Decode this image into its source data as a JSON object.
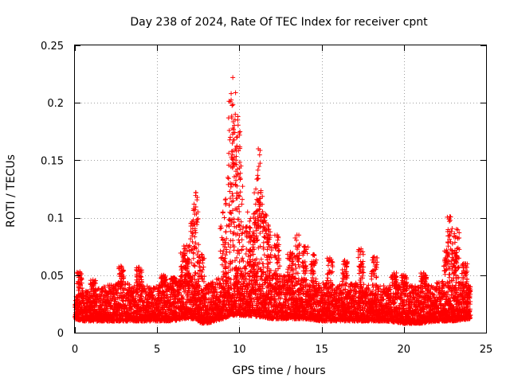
{
  "chart_data": {
    "type": "scatter",
    "title": "Day 238 of 2024, Rate Of TEC Index for receiver cpnt",
    "xlabel": "GPS time / hours",
    "ylabel": "ROTI / TECUs",
    "xlim": [
      0,
      25
    ],
    "ylim": [
      0,
      0.25
    ],
    "xticks": [
      0,
      5,
      10,
      15,
      20,
      25
    ],
    "xtick_labels": [
      "0",
      "5",
      "10",
      "15",
      "20",
      "25"
    ],
    "yticks": [
      0,
      0.05,
      0.1,
      0.15,
      0.2,
      0.25
    ],
    "ytick_labels": [
      "0",
      "0.05",
      "0.1",
      "0.15",
      "0.2",
      "0.25"
    ],
    "grid": true,
    "marker": "+",
    "marker_color": "#ff0000",
    "series": [
      {
        "name": "ROTI",
        "envelope_note": "dense band of points sampled every ~0.01 h; values estimated from the figure",
        "baseline_profile": [
          [
            0.0,
            0.012,
            0.03
          ],
          [
            0.5,
            0.01,
            0.035
          ],
          [
            1.0,
            0.01,
            0.035
          ],
          [
            2.0,
            0.01,
            0.04
          ],
          [
            3.0,
            0.01,
            0.042
          ],
          [
            4.0,
            0.01,
            0.04
          ],
          [
            5.0,
            0.01,
            0.04
          ],
          [
            6.0,
            0.01,
            0.042
          ],
          [
            6.5,
            0.012,
            0.045
          ],
          [
            7.0,
            0.012,
            0.05
          ],
          [
            7.4,
            0.012,
            0.045
          ],
          [
            7.6,
            0.008,
            0.035
          ],
          [
            8.0,
            0.008,
            0.04
          ],
          [
            9.0,
            0.012,
            0.048
          ],
          [
            9.5,
            0.015,
            0.055
          ],
          [
            10.0,
            0.015,
            0.055
          ],
          [
            11.0,
            0.014,
            0.055
          ],
          [
            12.0,
            0.012,
            0.05
          ],
          [
            13.0,
            0.012,
            0.048
          ],
          [
            14.0,
            0.012,
            0.045
          ],
          [
            15.0,
            0.01,
            0.042
          ],
          [
            16.0,
            0.01,
            0.04
          ],
          [
            17.0,
            0.01,
            0.042
          ],
          [
            18.0,
            0.01,
            0.04
          ],
          [
            19.0,
            0.01,
            0.04
          ],
          [
            20.0,
            0.008,
            0.04
          ],
          [
            21.0,
            0.008,
            0.04
          ],
          [
            22.0,
            0.01,
            0.042
          ],
          [
            23.0,
            0.01,
            0.045
          ],
          [
            24.0,
            0.012,
            0.04
          ]
        ],
        "peaks": [
          [
            0.3,
            0.053
          ],
          [
            1.1,
            0.046
          ],
          [
            2.8,
            0.058
          ],
          [
            3.9,
            0.057
          ],
          [
            5.4,
            0.05
          ],
          [
            6.0,
            0.048
          ],
          [
            6.6,
            0.07
          ],
          [
            6.8,
            0.076
          ],
          [
            7.2,
            0.098
          ],
          [
            7.35,
            0.122
          ],
          [
            7.7,
            0.068
          ],
          [
            9.0,
            0.105
          ],
          [
            9.3,
            0.135
          ],
          [
            9.5,
            0.208
          ],
          [
            9.6,
            0.222
          ],
          [
            9.75,
            0.19
          ],
          [
            9.9,
            0.185
          ],
          [
            10.1,
            0.145
          ],
          [
            10.5,
            0.105
          ],
          [
            10.8,
            0.085
          ],
          [
            11.0,
            0.125
          ],
          [
            11.15,
            0.16
          ],
          [
            11.3,
            0.122
          ],
          [
            11.6,
            0.103
          ],
          [
            11.8,
            0.09
          ],
          [
            12.3,
            0.085
          ],
          [
            13.1,
            0.07
          ],
          [
            13.5,
            0.085
          ],
          [
            14.0,
            0.075
          ],
          [
            14.5,
            0.068
          ],
          [
            15.5,
            0.065
          ],
          [
            16.4,
            0.063
          ],
          [
            17.4,
            0.073
          ],
          [
            18.2,
            0.066
          ],
          [
            19.4,
            0.052
          ],
          [
            20.0,
            0.05
          ],
          [
            21.2,
            0.052
          ],
          [
            22.6,
            0.072
          ],
          [
            22.8,
            0.101
          ],
          [
            23.1,
            0.07
          ],
          [
            23.2,
            0.09
          ],
          [
            23.7,
            0.06
          ],
          [
            24.0,
            0.03
          ]
        ]
      }
    ]
  }
}
